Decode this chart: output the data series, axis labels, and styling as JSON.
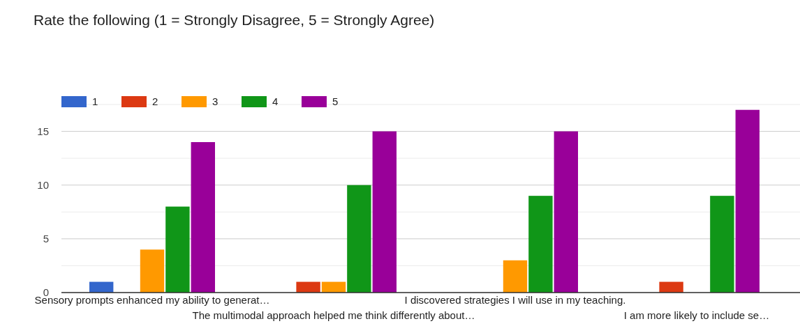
{
  "chart_data": {
    "type": "bar",
    "title": "Rate the following (1 = Strongly Disagree, 5 = Strongly Agree)",
    "categories": [
      "Sensory prompts enhanced my ability to generat…",
      "The multimodal approach helped me think differently about…",
      "I discovered strategies I will use in my teaching.",
      "I am more likely to include se…"
    ],
    "series": [
      {
        "name": "1",
        "color": "#3366cc",
        "values": [
          1,
          0,
          0,
          0
        ]
      },
      {
        "name": "2",
        "color": "#dc3912",
        "values": [
          0,
          1,
          0,
          1
        ]
      },
      {
        "name": "3",
        "color": "#ff9900",
        "values": [
          4,
          1,
          3,
          0
        ]
      },
      {
        "name": "4",
        "color": "#109618",
        "values": [
          8,
          10,
          9,
          9
        ]
      },
      {
        "name": "5",
        "color": "#990099",
        "values": [
          14,
          15,
          15,
          17
        ]
      }
    ],
    "ylim": [
      0,
      17.5
    ],
    "yticks": [
      0,
      {
        "value": 2.5,
        "label": null
      },
      5,
      {
        "value": 7.5,
        "label": null
      },
      10,
      {
        "value": 12.5,
        "label": null
      },
      15,
      {
        "value": 17.5,
        "label": null
      }
    ],
    "grid": true,
    "legend": "top left"
  }
}
